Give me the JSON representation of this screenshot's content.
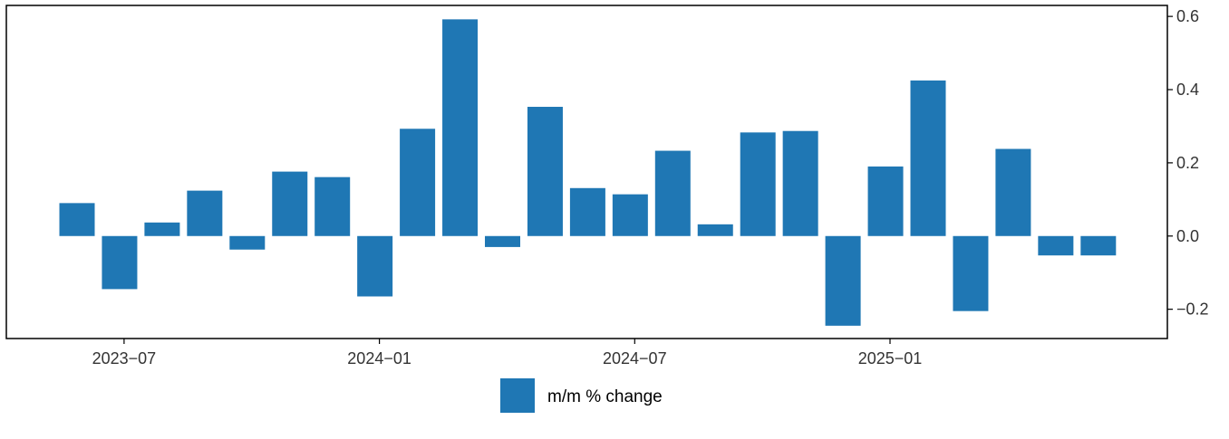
{
  "chart_data": {
    "type": "bar",
    "x": [
      "2023-05",
      "2023-06",
      "2023-07",
      "2023-08",
      "2023-09",
      "2023-10",
      "2023-11",
      "2023-12",
      "2024-01",
      "2024-02",
      "2024-03",
      "2024-04",
      "2024-05",
      "2024-06",
      "2024-07",
      "2024-08",
      "2024-09",
      "2024-10",
      "2024-11",
      "2024-12",
      "2025-01",
      "2025-02",
      "2025-03",
      "2025-04",
      "2025-05"
    ],
    "series": [
      {
        "name": "m/m % change",
        "color": "#1f77b4",
        "values": [
          0.09,
          -0.145,
          0.037,
          0.124,
          -0.037,
          0.176,
          0.161,
          -0.165,
          0.293,
          0.592,
          -0.03,
          0.353,
          0.131,
          0.114,
          0.233,
          0.032,
          0.283,
          0.287,
          -0.245,
          0.19,
          0.425,
          -0.205,
          0.238,
          -0.053,
          -0.053
        ]
      }
    ],
    "x_ticks": [
      "2023−07",
      "2024−01",
      "2024−07",
      "2025−01"
    ],
    "y_ticks": [
      "0.6",
      "0.4",
      "0.2",
      "0.0",
      "−0.2"
    ],
    "ylim": [
      -0.28,
      0.63
    ],
    "y_axis_side": "right",
    "grid": false,
    "legend_position": "bottom-center",
    "title": "",
    "xlabel": "",
    "ylabel": ""
  }
}
